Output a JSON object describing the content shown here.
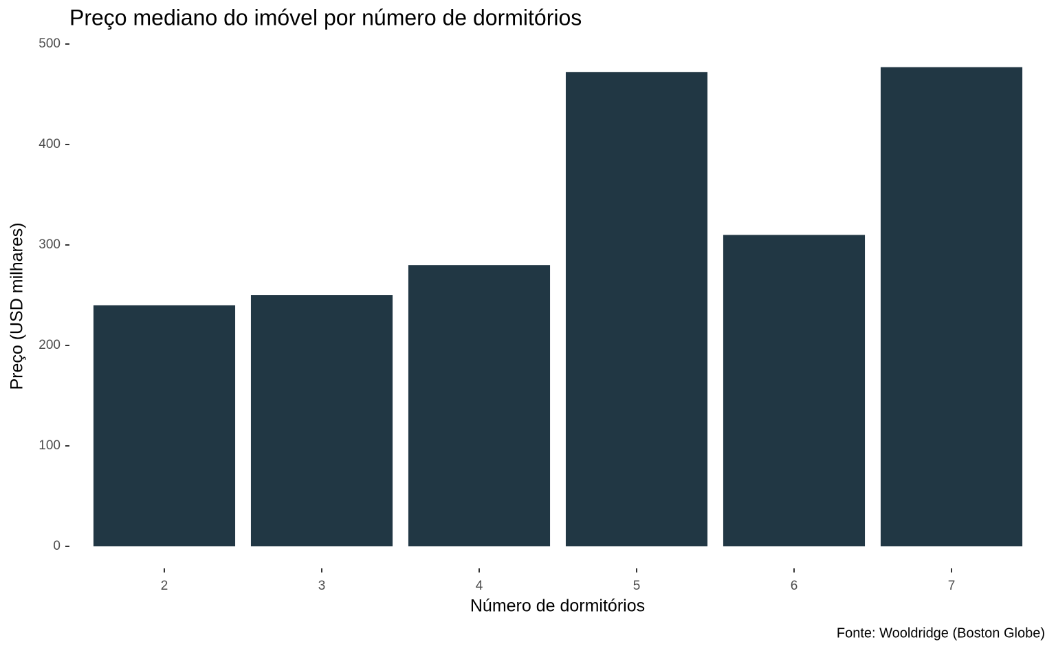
{
  "chart_data": {
    "type": "bar",
    "title": "Preço mediano do imóvel por número de dormitórios",
    "x_label": "Número de dormitórios",
    "y_label": "Preço (USD milhares)",
    "caption": "Fonte: Wooldridge (Boston Globe)",
    "categories": [
      "2",
      "3",
      "4",
      "5",
      "6",
      "7"
    ],
    "values": [
      240,
      250,
      280,
      472,
      310,
      477
    ],
    "color": "#213744",
    "ylim": [
      0,
      500
    ],
    "yticks": [
      0,
      100,
      200,
      300,
      400,
      500
    ],
    "grid": false
  }
}
